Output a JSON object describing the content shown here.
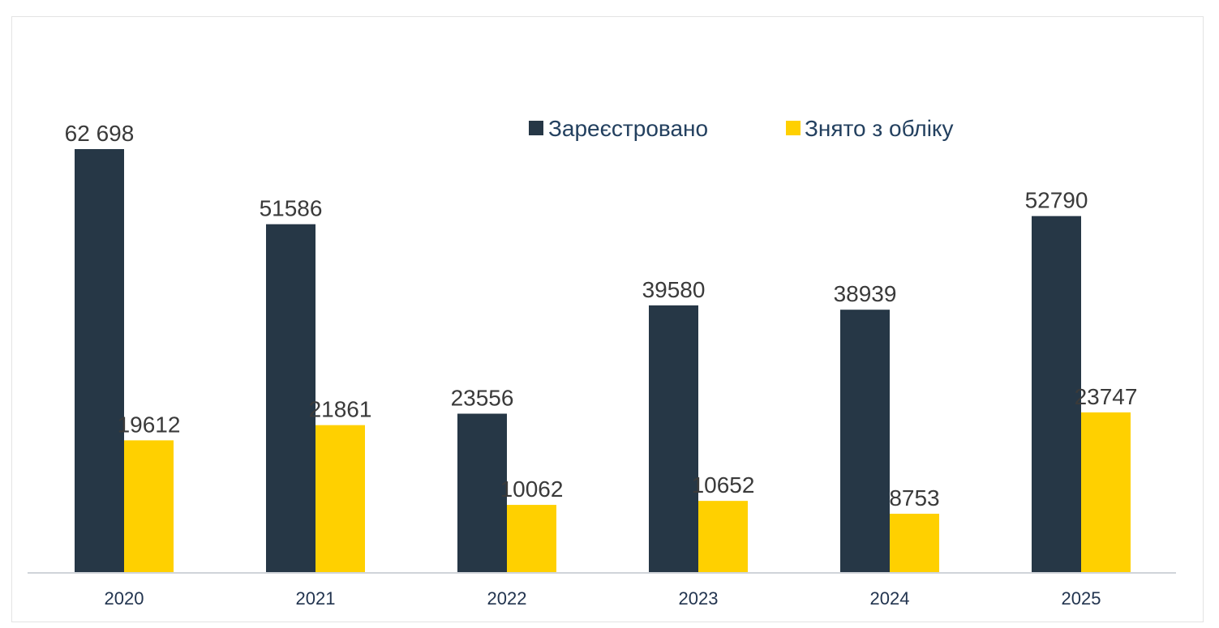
{
  "chart_data": {
    "type": "bar",
    "categories": [
      "2020",
      "2021",
      "2022",
      "2023",
      "2024",
      "2025"
    ],
    "series": [
      {
        "name": "Зареєстровано",
        "color": "#263746",
        "values": [
          62698,
          51586,
          23556,
          39580,
          38939,
          52790
        ],
        "labels": [
          "62 698",
          "51586",
          "23556",
          "39580",
          "38939",
          "52790"
        ]
      },
      {
        "name": "Знято з обліку",
        "color": "#ffd000",
        "values": [
          19612,
          21861,
          10062,
          10652,
          8753,
          23747
        ],
        "labels": [
          "19612",
          "21861",
          "10062",
          "10652",
          "8753",
          "23747"
        ]
      }
    ],
    "ylim": [
      0,
      62698
    ],
    "grid": false,
    "legend_position": "top-right",
    "axis_color": "#d0d4d9"
  }
}
